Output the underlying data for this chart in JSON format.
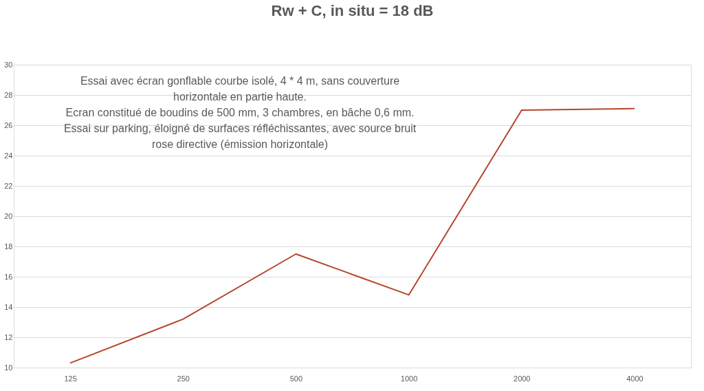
{
  "chart_data": {
    "type": "line",
    "title": "Rw + C, in situ = 18 dB",
    "categories": [
      "125",
      "250",
      "500",
      "1000",
      "2000",
      "4000"
    ],
    "series": [
      {
        "color": "#b5462c",
        "values": [
          10.3,
          13.2,
          17.5,
          14.8,
          27.0,
          27.1
        ]
      }
    ],
    "ylim": [
      10,
      30
    ],
    "yticks": [
      10,
      12,
      14,
      16,
      18,
      20,
      22,
      24,
      26,
      28,
      30
    ],
    "grid": "y",
    "marker": "none",
    "line_style": "solid",
    "annotations": [
      "Essai avec écran gonflable courbe isolé, 4 * 4 m, sans couverture\nhorizontale en partie haute.\nEcran constitué de boudins de 500 mm, 3 chambres, en bâche 0,6 mm.\nEssai sur parking, éloigné de surfaces réfléchissantes, avec source bruit\nrose directive (émission horizontale)"
    ]
  }
}
